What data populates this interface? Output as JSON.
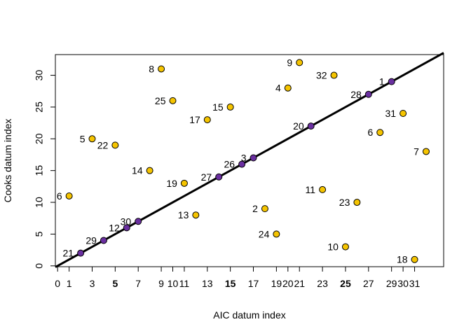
{
  "chart_data": {
    "type": "scatter",
    "title": "",
    "xlabel": "AIC datum index",
    "ylabel": "Cooks datum index",
    "xlim": [
      0,
      33
    ],
    "ylim": [
      0,
      33
    ],
    "grid": false,
    "x_ticks": [
      0,
      1,
      3,
      5,
      7,
      9,
      10,
      11,
      13,
      15,
      17,
      19,
      20,
      21,
      23,
      25,
      27,
      29,
      30,
      31
    ],
    "x_tick_labels": [
      "0",
      "1",
      "3",
      "5",
      "7",
      "9",
      "10",
      "11",
      "13",
      "15",
      "17",
      "19",
      "20",
      "21",
      "23",
      "25",
      "27",
      "29",
      "30",
      "31"
    ],
    "x_bold_ticks": [
      "5",
      "15",
      "25"
    ],
    "y_ticks": [
      0,
      5,
      10,
      15,
      20,
      25,
      30
    ],
    "y_tick_labels": [
      "0",
      "5",
      "10",
      "15",
      "20",
      "25",
      "30"
    ],
    "reference_line": {
      "slope": 1,
      "intercept": 0
    },
    "colors": {
      "on_line": "#6a2fa0",
      "off_line": "#f5c400",
      "outline": "#000000",
      "line": "#000000"
    },
    "points": [
      {
        "label": "6",
        "x": 1,
        "y": 11,
        "on_line": false
      },
      {
        "label": "21",
        "x": 2,
        "y": 2,
        "on_line": true
      },
      {
        "label": "5",
        "x": 3,
        "y": 20,
        "on_line": false
      },
      {
        "label": "29",
        "x": 4,
        "y": 4,
        "on_line": true
      },
      {
        "label": "22",
        "x": 5,
        "y": 19,
        "on_line": false
      },
      {
        "label": "12",
        "x": 6,
        "y": 6,
        "on_line": true
      },
      {
        "label": "30",
        "x": 7,
        "y": 7,
        "on_line": true
      },
      {
        "label": "14",
        "x": 8,
        "y": 15,
        "on_line": false
      },
      {
        "label": "8",
        "x": 9,
        "y": 31,
        "on_line": false
      },
      {
        "label": "25",
        "x": 10,
        "y": 26,
        "on_line": false
      },
      {
        "label": "19",
        "x": 11,
        "y": 13,
        "on_line": false
      },
      {
        "label": "13",
        "x": 12,
        "y": 8,
        "on_line": false
      },
      {
        "label": "17",
        "x": 13,
        "y": 23,
        "on_line": false
      },
      {
        "label": "27",
        "x": 14,
        "y": 14,
        "on_line": true
      },
      {
        "label": "15",
        "x": 15,
        "y": 25,
        "on_line": false
      },
      {
        "label": "26",
        "x": 16,
        "y": 16,
        "on_line": true
      },
      {
        "label": "3",
        "x": 17,
        "y": 17,
        "on_line": true
      },
      {
        "label": "2",
        "x": 18,
        "y": 9,
        "on_line": false
      },
      {
        "label": "24",
        "x": 19,
        "y": 5,
        "on_line": false
      },
      {
        "label": "4",
        "x": 20,
        "y": 28,
        "on_line": false
      },
      {
        "label": "9",
        "x": 21,
        "y": 32,
        "on_line": false
      },
      {
        "label": "20",
        "x": 22,
        "y": 22,
        "on_line": true
      },
      {
        "label": "11",
        "x": 23,
        "y": 12,
        "on_line": false
      },
      {
        "label": "32",
        "x": 24,
        "y": 30,
        "on_line": false
      },
      {
        "label": "10",
        "x": 25,
        "y": 3,
        "on_line": false
      },
      {
        "label": "23",
        "x": 26,
        "y": 10,
        "on_line": false
      },
      {
        "label": "28",
        "x": 27,
        "y": 27,
        "on_line": true
      },
      {
        "label": "6",
        "x": 28,
        "y": 21,
        "on_line": false
      },
      {
        "label": "1",
        "x": 29,
        "y": 29,
        "on_line": true
      },
      {
        "label": "31",
        "x": 30,
        "y": 24,
        "on_line": false
      },
      {
        "label": "18",
        "x": 31,
        "y": 1,
        "on_line": false
      },
      {
        "label": "7",
        "x": 32,
        "y": 18,
        "on_line": false
      }
    ]
  }
}
